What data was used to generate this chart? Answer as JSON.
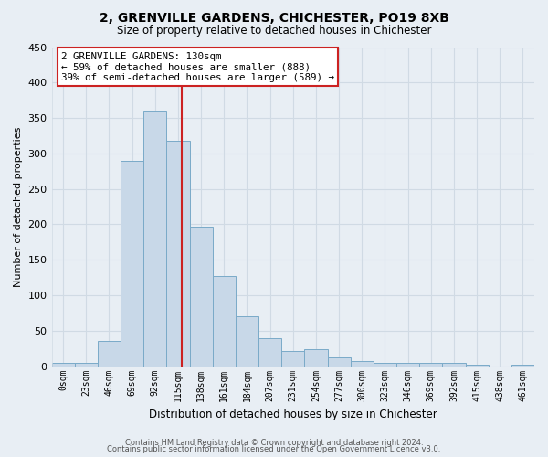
{
  "title": "2, GRENVILLE GARDENS, CHICHESTER, PO19 8XB",
  "subtitle": "Size of property relative to detached houses in Chichester",
  "xlabel": "Distribution of detached houses by size in Chichester",
  "ylabel": "Number of detached properties",
  "bin_labels": [
    "0sqm",
    "23sqm",
    "46sqm",
    "69sqm",
    "92sqm",
    "115sqm",
    "138sqm",
    "161sqm",
    "184sqm",
    "207sqm",
    "231sqm",
    "254sqm",
    "277sqm",
    "300sqm",
    "323sqm",
    "346sqm",
    "369sqm",
    "392sqm",
    "415sqm",
    "438sqm",
    "461sqm"
  ],
  "bar_heights": [
    5,
    5,
    35,
    290,
    360,
    318,
    197,
    127,
    70,
    40,
    21,
    24,
    13,
    7,
    5,
    5,
    5,
    5,
    2,
    0,
    2
  ],
  "bar_color": "#c8d8e8",
  "bar_edge_color": "#7aaac8",
  "property_line_x": 5.65,
  "annotation_title": "2 GRENVILLE GARDENS: 130sqm",
  "annotation_line1": "← 59% of detached houses are smaller (888)",
  "annotation_line2": "39% of semi-detached houses are larger (589) →",
  "annotation_box_facecolor": "#ffffff",
  "annotation_box_edgecolor": "#cc2222",
  "property_line_color": "#cc2222",
  "ylim": [
    0,
    450
  ],
  "yticks": [
    0,
    50,
    100,
    150,
    200,
    250,
    300,
    350,
    400,
    450
  ],
  "footer1": "Contains HM Land Registry data © Crown copyright and database right 2024.",
  "footer2": "Contains public sector information licensed under the Open Government Licence v3.0.",
  "background_color": "#e8eef4",
  "grid_color": "#d0dae4"
}
